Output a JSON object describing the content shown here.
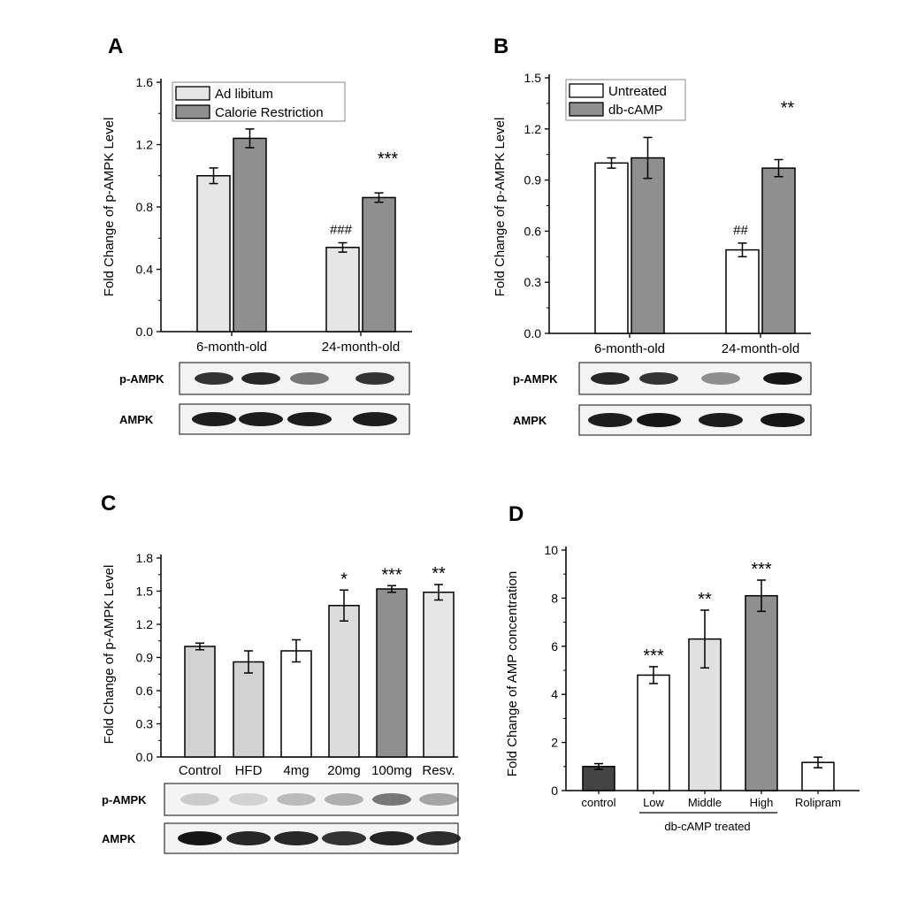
{
  "colors": {
    "light_gray": "#e6e6e6",
    "mid_gray": "#d2d2d2",
    "dark_gray": "#8f8f8f",
    "darker_gray": "#7a7a7a",
    "black_bar": "#444444",
    "white": "#ffffff"
  },
  "chart_data": [
    {
      "panel": "A",
      "type": "bar",
      "ylabel": "Fold Change of p-AMPK Level",
      "ylim": [
        0,
        1.6
      ],
      "yticks": [
        "0.0",
        "0.4",
        "0.8",
        "1.2",
        "1.6"
      ],
      "categories": [
        "6-month-old",
        "24-month-old"
      ],
      "legend_position": "top-left",
      "series": [
        {
          "name": "Ad libitum",
          "color": "#e6e6e6",
          "values": [
            1.0,
            0.54
          ],
          "errors": [
            0.05,
            0.03
          ]
        },
        {
          "name": "Calorie Restriction",
          "color": "#8f8f8f",
          "values": [
            1.24,
            0.86
          ],
          "errors": [
            0.06,
            0.03
          ]
        }
      ],
      "annotations": [
        {
          "series": 0,
          "category": 1,
          "text": "###"
        },
        {
          "series": 1,
          "category": 1,
          "text": "***"
        }
      ],
      "blots": [
        "p-AMPK",
        "AMPK"
      ]
    },
    {
      "panel": "B",
      "type": "bar",
      "ylabel": "Fold Change of p-AMPK Level",
      "ylim": [
        0,
        1.5
      ],
      "yticks": [
        "0.0",
        "0.3",
        "0.6",
        "0.9",
        "1.2",
        "1.5"
      ],
      "categories": [
        "6-month-old",
        "24-month-old"
      ],
      "legend_position": "top-left",
      "series": [
        {
          "name": "Untreated",
          "color": "#ffffff",
          "values": [
            1.0,
            0.49
          ],
          "errors": [
            0.03,
            0.04
          ]
        },
        {
          "name": "db-cAMP",
          "color": "#8f8f8f",
          "values": [
            1.03,
            0.97
          ],
          "errors": [
            0.12,
            0.05
          ]
        }
      ],
      "annotations": [
        {
          "series": 0,
          "category": 1,
          "text": "##"
        },
        {
          "series": 1,
          "category": 1,
          "text": "**"
        }
      ],
      "blots": [
        "p-AMPK",
        "AMPK"
      ]
    },
    {
      "panel": "C",
      "type": "bar",
      "ylabel": "Fold Change of p-AMPK Level",
      "ylim": [
        0,
        1.8
      ],
      "yticks": [
        "0.0",
        "0.3",
        "0.6",
        "0.9",
        "1.2",
        "1.5",
        "1.8"
      ],
      "categories": [
        "Control",
        "HFD",
        "4mg",
        "20mg",
        "100mg",
        "Resv."
      ],
      "values": [
        1.0,
        0.86,
        0.96,
        1.37,
        1.52,
        1.49
      ],
      "errors": [
        0.03,
        0.1,
        0.1,
        0.14,
        0.03,
        0.07
      ],
      "colors": [
        "#d2d2d2",
        "#d2d2d2",
        "#ffffff",
        "#dcdcdc",
        "#8f8f8f",
        "#e6e6e6"
      ],
      "annotations": [
        "",
        "",
        "",
        "*",
        "***",
        "**"
      ],
      "blots": [
        "p-AMPK",
        "AMPK"
      ]
    },
    {
      "panel": "D",
      "type": "bar",
      "ylabel": "Fold Change of AMP concentration",
      "ylim": [
        0,
        10
      ],
      "yticks": [
        "0",
        "2",
        "4",
        "6",
        "8",
        "10"
      ],
      "categories": [
        "control",
        "Low",
        "Middle",
        "High",
        "Rolipram"
      ],
      "group_label": "db-cAMP treated",
      "values": [
        1.0,
        4.8,
        6.3,
        8.1,
        1.17
      ],
      "errors": [
        0.12,
        0.35,
        1.2,
        0.65,
        0.22
      ],
      "colors": [
        "#444444",
        "#ffffff",
        "#e0e0e0",
        "#8f8f8f",
        "#ffffff"
      ],
      "annotations": [
        "",
        "***",
        "**",
        "***",
        ""
      ]
    }
  ]
}
